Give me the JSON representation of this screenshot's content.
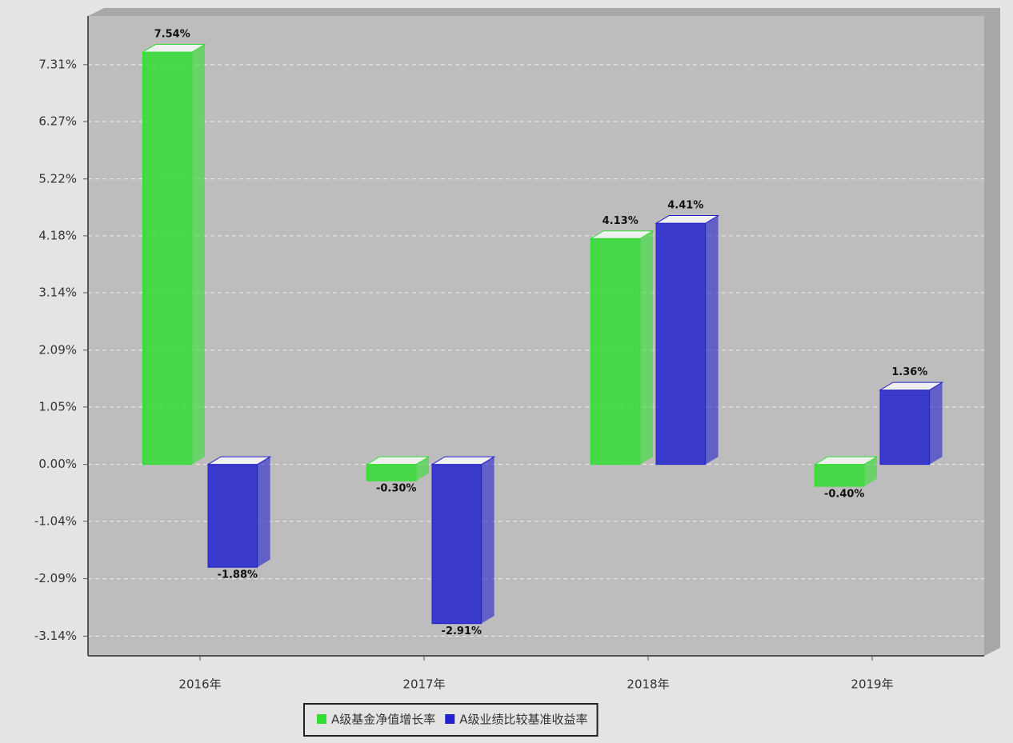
{
  "chart_data": {
    "type": "bar3d",
    "categories": [
      "2016年",
      "2017年",
      "2018年",
      "2019年"
    ],
    "series": [
      {
        "name": "A级基金净值增长率",
        "color": "#33dd33",
        "values": [
          7.54,
          -0.3,
          4.13,
          -0.4
        ],
        "value_labels": [
          "7.54%",
          "-0.30%",
          "4.13%",
          "-0.40%"
        ]
      },
      {
        "name": "A级业绩比较基准收益率",
        "color": "#2222cc",
        "values": [
          -1.88,
          -2.91,
          4.41,
          1.36
        ],
        "value_labels": [
          "-1.88%",
          "-2.91%",
          "4.41%",
          "1.36%"
        ]
      }
    ],
    "ylim": [
      -3.5,
      8.2
    ],
    "yticks": [
      {
        "value": -3.14,
        "label": "-3.14%"
      },
      {
        "value": -2.09,
        "label": "-2.09%"
      },
      {
        "value": -1.04,
        "label": "-1.04%"
      },
      {
        "value": 0,
        "label": "0.00%"
      },
      {
        "value": 1.05,
        "label": "1.05%"
      },
      {
        "value": 2.09,
        "label": "2.09%"
      },
      {
        "value": 3.14,
        "label": "3.14%"
      },
      {
        "value": 4.18,
        "label": "4.18%"
      },
      {
        "value": 5.22,
        "label": "5.22%"
      },
      {
        "value": 6.27,
        "label": "6.27%"
      },
      {
        "value": 7.31,
        "label": "7.31%"
      }
    ],
    "grid": true
  }
}
